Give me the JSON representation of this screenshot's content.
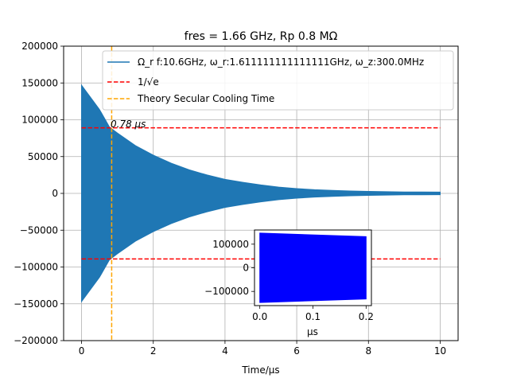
{
  "chart_data": [
    {
      "type": "line",
      "title": "fres = 1.66 GHz, Rp 0.8 MΩ",
      "xlabel": "Time/μs",
      "ylabel": "",
      "xlim": [
        -0.5,
        10.5
      ],
      "ylim": [
        -200000,
        200000
      ],
      "xticks": [
        0,
        2,
        4,
        6,
        8,
        10
      ],
      "xtick_labels": [
        "0",
        "2",
        "4",
        "6",
        "8",
        "10"
      ],
      "yticks": [
        200000,
        150000,
        100000,
        50000,
        0,
        -50000,
        -100000,
        -150000,
        -200000
      ],
      "ytick_labels": [
        "200000",
        "150000",
        "100000",
        "50000",
        "0",
        "−50000",
        "−100000",
        "−150000",
        "−200000"
      ],
      "grid": true,
      "legend": "top-right",
      "series": [
        {
          "name": "Ω_r f:10.6GHz, ω_r:1.611111111111111GHz, ω_z:300.0MHz",
          "color": "#1f77b4",
          "style": "solid",
          "envelope": {
            "x": [
              0,
              0.5,
              0.78,
              1,
              1.5,
              2,
              2.5,
              3,
              3.5,
              4,
              4.5,
              5,
              5.5,
              6,
              6.5,
              7,
              7.5,
              8,
              8.5,
              9,
              9.5,
              10
            ],
            "upper": [
              147000,
              114000,
              90000,
              82000,
              65000,
              52000,
              41000,
              32000,
              25000,
              19000,
              15000,
              11500,
              8500,
              6500,
              5000,
              4000,
              3200,
              2700,
              2300,
              2000,
              1800,
              1700
            ],
            "lower": [
              -147000,
              -114000,
              -90000,
              -82000,
              -65000,
              -52000,
              -41000,
              -32000,
              -25000,
              -19000,
              -15000,
              -11500,
              -8500,
              -6500,
              -5000,
              -4000,
              -3200,
              -2700,
              -2300,
              -2000,
              -1800,
              -1700
            ]
          }
        },
        {
          "name": "1/√e",
          "color": "#ff0000",
          "style": "dashed",
          "y_values": [
            89000,
            -89000
          ],
          "x_range": [
            0,
            10
          ]
        },
        {
          "name": "Theory Secular Cooling Time",
          "color": "#ffa500",
          "style": "dashed",
          "x_value": 0.84
        }
      ],
      "annotations": [
        {
          "text": "0.78 μs",
          "x": 0.84,
          "y": 89000
        }
      ]
    },
    {
      "type": "line",
      "title": "",
      "xlabel": "μs",
      "ylabel": "",
      "xlim": [
        -0.01,
        0.21
      ],
      "ylim": [
        -160000,
        160000
      ],
      "xticks": [
        0.0,
        0.1,
        0.2
      ],
      "xtick_labels": [
        "0.0",
        "0.1",
        "0.2"
      ],
      "yticks": [
        100000,
        0,
        -100000
      ],
      "ytick_labels": [
        "100000",
        "0",
        "−100000"
      ],
      "grid": false,
      "series": [
        {
          "name": "",
          "color": "#0000ff",
          "style": "solid",
          "envelope": {
            "x": [
              0.0,
              0.2
            ],
            "upper": [
              147000,
              132000
            ],
            "lower": [
              -147000,
              -132000
            ]
          }
        }
      ]
    }
  ]
}
